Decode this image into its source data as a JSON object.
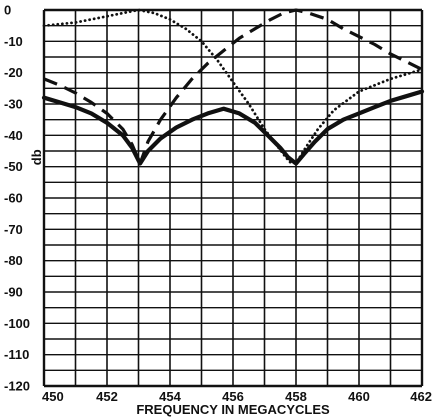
{
  "chart_data": {
    "type": "line",
    "xlabel": "FREQUENCY IN MEGACYCLES",
    "ylabel": "db",
    "xlim": [
      450,
      462
    ],
    "ylim": [
      -120,
      0
    ],
    "xticks": [
      450,
      452,
      454,
      456,
      458,
      460,
      462
    ],
    "yticks": [
      0,
      -10,
      -20,
      -30,
      -40,
      -50,
      -60,
      -70,
      -80,
      -90,
      -100,
      -110,
      -120
    ],
    "grid": true,
    "legend": "none",
    "series": [
      {
        "style": "solid",
        "x": [
          450,
          450.5,
          451,
          451.5,
          452,
          452.5,
          452.8,
          453.05,
          453.3,
          453.7,
          454.2,
          454.7,
          455.2,
          455.7,
          456.2,
          456.7,
          457.1,
          457.5,
          457.75,
          458,
          458.25,
          458.6,
          459,
          459.5,
          460,
          460.5,
          461,
          461.5,
          462
        ],
        "y": [
          -28,
          -29.5,
          -31,
          -33,
          -36,
          -40,
          -44,
          -49,
          -45,
          -41,
          -37.5,
          -35,
          -33,
          -31.5,
          -33,
          -36,
          -40,
          -44,
          -47,
          -49,
          -46,
          -42,
          -38,
          -35,
          -33,
          -31,
          -29,
          -27.5,
          -26
        ]
      },
      {
        "style": "dashed",
        "x": [
          450,
          450.5,
          451,
          451.5,
          452,
          452.5,
          452.8,
          453.05,
          453.3,
          453.7,
          454.2,
          454.7,
          455.2,
          455.7,
          456.2,
          456.7,
          457.2,
          457.6,
          458,
          458.4,
          459,
          459.5,
          460,
          460.5,
          461,
          461.5,
          462
        ],
        "y": [
          -22,
          -24,
          -26.5,
          -29.5,
          -33,
          -38,
          -43,
          -49,
          -42,
          -35,
          -28,
          -22,
          -17,
          -13,
          -9,
          -6,
          -3,
          -1,
          0,
          -1,
          -3,
          -6,
          -8.5,
          -11,
          -14,
          -16.5,
          -19
        ]
      },
      {
        "style": "dotted",
        "x": [
          450,
          450.5,
          451,
          451.5,
          452,
          452.5,
          453,
          453.5,
          454,
          454.5,
          455,
          455.5,
          456,
          456.5,
          457,
          457.3,
          457.6,
          457.8,
          458,
          458.3,
          458.7,
          459.2,
          460,
          460.5,
          461,
          461.5,
          462
        ],
        "y": [
          -5,
          -4.5,
          -4,
          -3,
          -2,
          -1,
          0,
          -1,
          -3,
          -6,
          -10,
          -16,
          -23,
          -30,
          -38,
          -42,
          -46,
          -48.5,
          -49,
          -44,
          -38,
          -32,
          -26,
          -24,
          -22,
          -20.5,
          -19
        ]
      }
    ]
  }
}
